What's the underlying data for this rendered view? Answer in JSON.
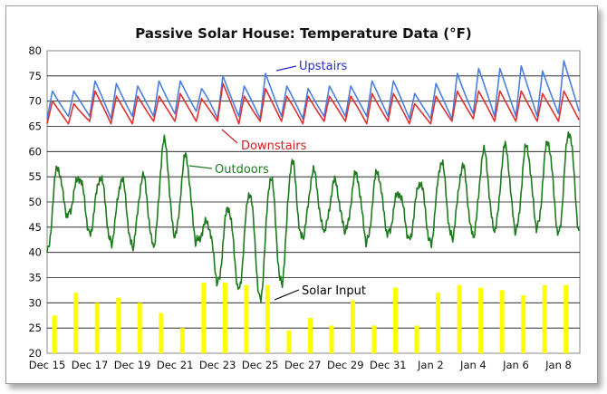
{
  "chart_data": {
    "type": "line",
    "title": "Passive Solar House: Temperature Data (°F)",
    "xlabel": "",
    "ylabel": "",
    "ylim": [
      20,
      80
    ],
    "yticks": [
      20,
      25,
      30,
      35,
      40,
      45,
      50,
      55,
      60,
      65,
      70,
      75,
      80
    ],
    "xlim": [
      0,
      25
    ],
    "x_tick_labels": [
      "Dec 15",
      "Dec 17",
      "Dec 19",
      "Dec 21",
      "Dec 23",
      "Dec 25",
      "Dec 27",
      "Dec 29",
      "Dec 31",
      "Jan 2",
      "Jan 4",
      "Jan 6",
      "Jan 8"
    ],
    "grid": true,
    "series": [
      {
        "name": "Upstairs",
        "kind": "line",
        "color": "#4a7fe0",
        "daily_min": [
          66.5,
          67,
          67,
          66.5,
          67,
          67,
          67.5,
          68,
          66.5,
          67,
          66.5,
          67,
          66.5,
          67,
          67,
          67,
          67,
          66.5,
          66.5,
          66.5,
          67.5,
          67,
          67,
          67,
          67.5
        ],
        "daily_max": [
          72,
          72,
          74,
          73.5,
          73,
          74,
          74,
          72.5,
          75,
          73,
          75.5,
          73,
          72.5,
          73,
          73,
          74,
          74,
          71.5,
          73.5,
          75.5,
          76.5,
          76.5,
          77,
          76,
          78
        ]
      },
      {
        "name": "Downstairs",
        "kind": "line",
        "color": "#e03030",
        "daily_min": [
          65.5,
          65.5,
          66,
          65.5,
          65.5,
          66,
          66,
          66,
          66,
          65.5,
          66,
          66,
          65.5,
          66,
          66,
          65.5,
          66,
          65.5,
          65.5,
          66,
          66.5,
          66,
          66,
          66,
          66
        ],
        "daily_max": [
          70,
          69.5,
          72,
          71,
          71,
          71,
          71.5,
          70.5,
          73.5,
          71,
          72.5,
          71,
          71,
          71,
          71,
          71.5,
          71.5,
          69.5,
          71,
          72,
          72,
          72,
          72,
          71.5,
          72
        ]
      },
      {
        "name": "Outdoors",
        "kind": "line",
        "color": "#1e7a1e",
        "daily_min": [
          40,
          48,
          44,
          42,
          41,
          41,
          43,
          42,
          34,
          33,
          31,
          34,
          43,
          44,
          44,
          42,
          44,
          43,
          42,
          43,
          43,
          44,
          44,
          45,
          44
        ],
        "daily_max": [
          57,
          55,
          55,
          54.5,
          55,
          62,
          59,
          46,
          49,
          52,
          55,
          58,
          56,
          54,
          55.5,
          56,
          52,
          54,
          58,
          57,
          60,
          61,
          61,
          62,
          64
        ]
      },
      {
        "name": "Solar Input",
        "kind": "bar",
        "color": "#ffff00",
        "values": [
          27.5,
          32,
          30,
          31,
          30,
          28,
          25,
          34,
          34,
          33.5,
          33.5,
          24.5,
          27,
          25.5,
          30.5,
          25.5,
          33,
          25.5,
          32,
          33.5,
          33,
          32.5,
          31.5,
          33.5,
          33.5
        ]
      }
    ],
    "annotations": [
      {
        "text": "Upstairs",
        "color": "#2a2ad0"
      },
      {
        "text": "Downstairs",
        "color": "#d02020"
      },
      {
        "text": "Outdoors",
        "color": "#1e7a1e"
      },
      {
        "text": "Solar Input",
        "color": "#000000"
      }
    ]
  }
}
